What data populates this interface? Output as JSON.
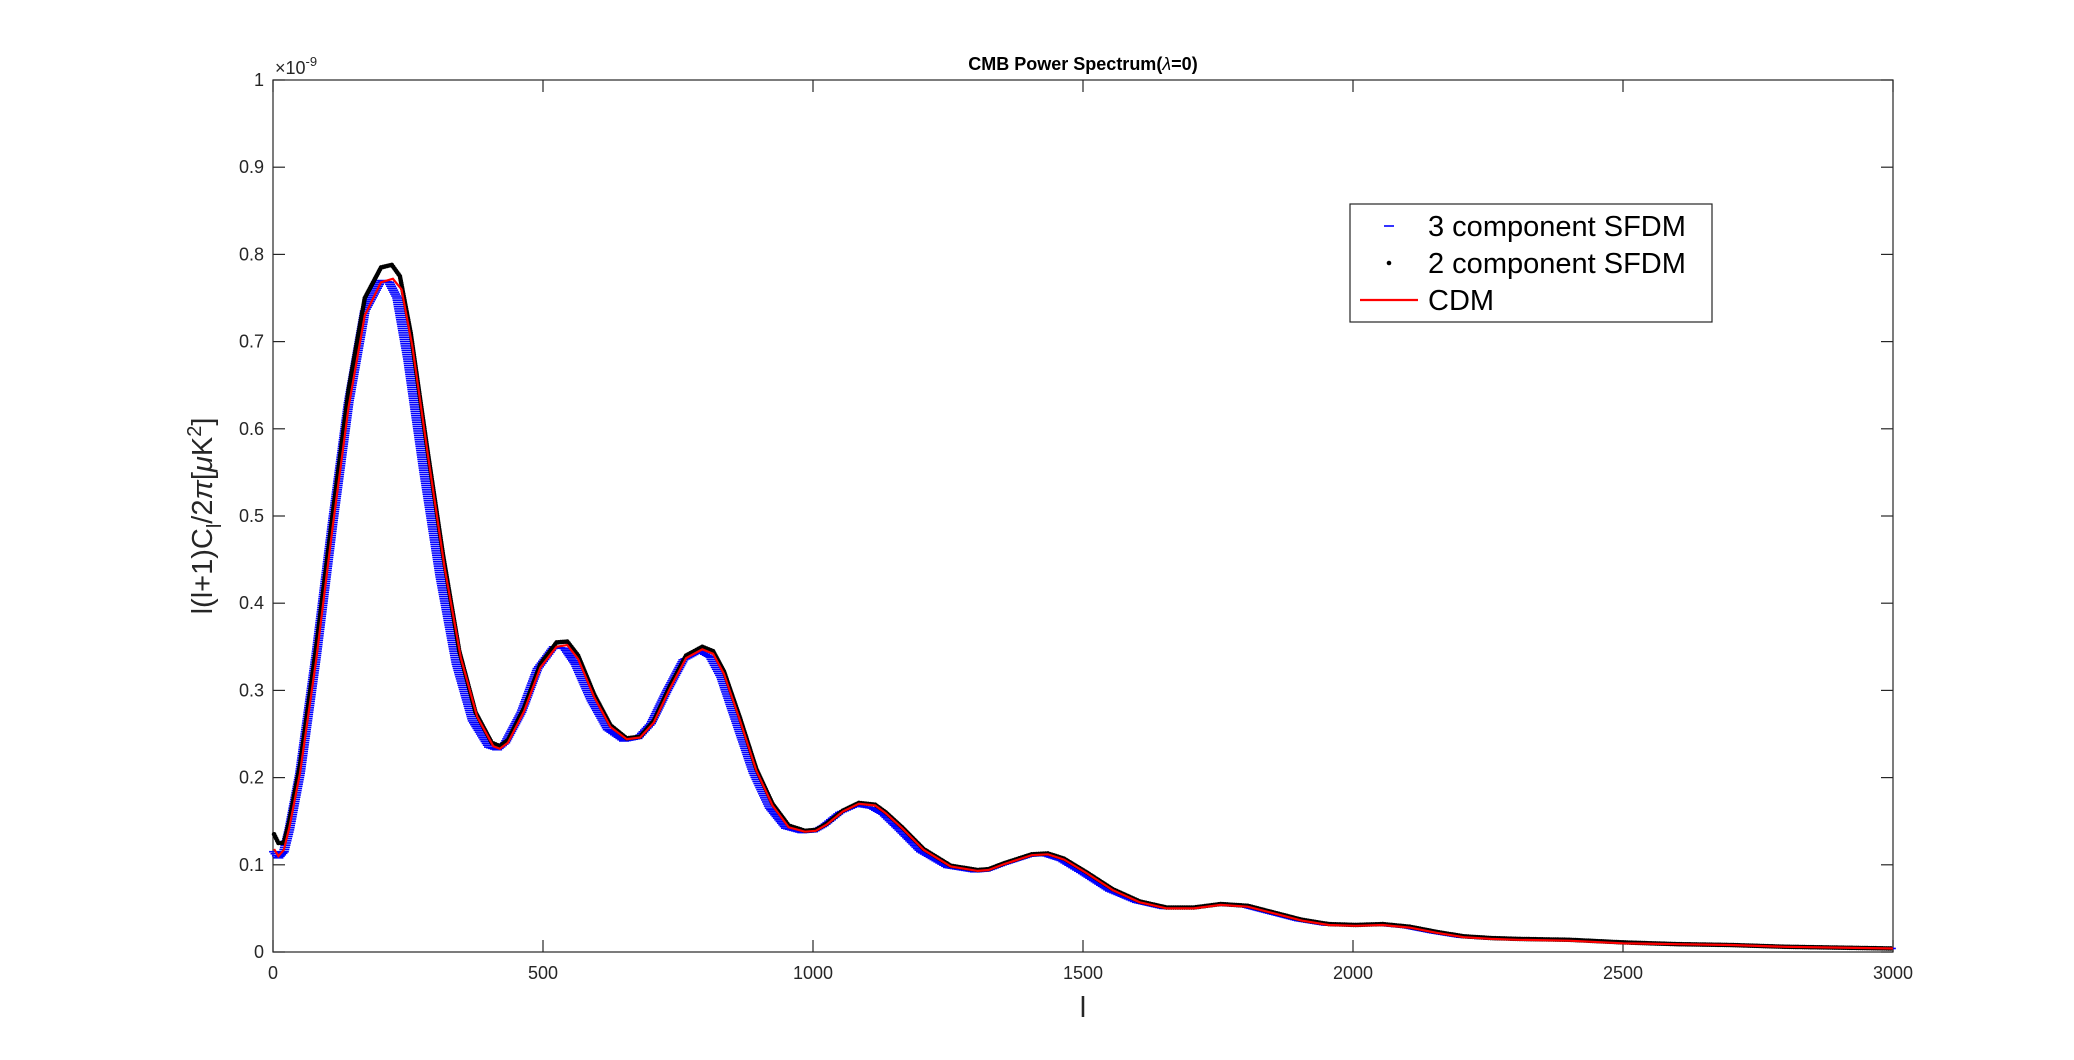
{
  "chart_data": {
    "type": "line",
    "title_prefix": "CMB Power Spectrum(",
    "title_symbol": "λ",
    "title_suffix": "=0)",
    "xlabel": "l",
    "ylabel_parts": [
      "l(l+1)C",
      "l",
      "/2",
      "π",
      "[",
      "μ",
      "K",
      "2",
      "]"
    ],
    "xlim": [
      0,
      3000
    ],
    "ylim": [
      0,
      1
    ],
    "y_exponent_label": "×10",
    "y_exponent": "-9",
    "x_ticks": [
      "0",
      "500",
      "1000",
      "1500",
      "2000",
      "2500",
      "3000"
    ],
    "x_tick_values": [
      0,
      500,
      1000,
      1500,
      2000,
      2500,
      3000
    ],
    "y_ticks": [
      "0",
      "0.1",
      "0.2",
      "0.3",
      "0.4",
      "0.5",
      "0.6",
      "0.7",
      "0.8",
      "0.9",
      "1"
    ],
    "y_tick_values": [
      0,
      0.1,
      0.2,
      0.3,
      0.4,
      0.5,
      0.6,
      0.7,
      0.8,
      0.9,
      1.0
    ],
    "legend_position": "top-right",
    "grid": false,
    "series": [
      {
        "name": "3 component SFDM",
        "color": "#0000ff",
        "marker": "dash",
        "x": [
          2,
          10,
          20,
          30,
          50,
          80,
          110,
          140,
          170,
          200,
          215,
          230,
          250,
          280,
          310,
          340,
          370,
          400,
          415,
          430,
          460,
          490,
          520,
          540,
          560,
          590,
          620,
          650,
          675,
          700,
          730,
          760,
          790,
          810,
          830,
          860,
          890,
          920,
          950,
          980,
          1000,
          1020,
          1050,
          1080,
          1110,
          1130,
          1160,
          1200,
          1250,
          1300,
          1320,
          1350,
          1400,
          1430,
          1460,
          1500,
          1550,
          1600,
          1650,
          1700,
          1750,
          1800,
          1850,
          1900,
          1950,
          2000,
          2050,
          2100,
          2150,
          2200,
          2250,
          2300,
          2400,
          2500,
          2600,
          2700,
          2800,
          2900,
          3000
        ],
        "y": [
          0.115,
          0.108,
          0.115,
          0.14,
          0.205,
          0.34,
          0.49,
          0.63,
          0.735,
          0.77,
          0.768,
          0.75,
          0.68,
          0.55,
          0.43,
          0.33,
          0.265,
          0.235,
          0.232,
          0.24,
          0.275,
          0.325,
          0.35,
          0.348,
          0.33,
          0.288,
          0.255,
          0.242,
          0.245,
          0.262,
          0.3,
          0.335,
          0.345,
          0.338,
          0.315,
          0.26,
          0.205,
          0.165,
          0.142,
          0.137,
          0.138,
          0.145,
          0.16,
          0.168,
          0.165,
          0.158,
          0.14,
          0.115,
          0.097,
          0.092,
          0.093,
          0.1,
          0.11,
          0.111,
          0.105,
          0.09,
          0.07,
          0.057,
          0.05,
          0.05,
          0.054,
          0.052,
          0.044,
          0.036,
          0.031,
          0.03,
          0.031,
          0.028,
          0.022,
          0.017,
          0.015,
          0.014,
          0.013,
          0.01,
          0.009,
          0.008,
          0.006,
          0.005,
          0.004
        ]
      },
      {
        "name": "2 component SFDM",
        "color": "#000000",
        "marker": "dot",
        "x": [
          2,
          10,
          20,
          30,
          50,
          80,
          110,
          140,
          170,
          200,
          220,
          235,
          255,
          285,
          315,
          345,
          375,
          405,
          420,
          435,
          465,
          495,
          525,
          545,
          565,
          595,
          625,
          655,
          680,
          705,
          735,
          765,
          795,
          815,
          835,
          865,
          895,
          925,
          955,
          985,
          1005,
          1025,
          1055,
          1085,
          1115,
          1135,
          1165,
          1205,
          1255,
          1305,
          1325,
          1355,
          1405,
          1435,
          1465,
          1505,
          1555,
          1605,
          1655,
          1705,
          1755,
          1805,
          1855,
          1905,
          1955,
          2005,
          2055,
          2105,
          2155,
          2205,
          2255,
          2305,
          2400,
          2500,
          2600,
          2700,
          2800,
          2900,
          3000
        ],
        "y": [
          0.135,
          0.125,
          0.125,
          0.15,
          0.215,
          0.35,
          0.5,
          0.645,
          0.75,
          0.785,
          0.788,
          0.775,
          0.71,
          0.58,
          0.455,
          0.345,
          0.275,
          0.24,
          0.236,
          0.243,
          0.28,
          0.33,
          0.355,
          0.356,
          0.34,
          0.295,
          0.26,
          0.245,
          0.247,
          0.265,
          0.305,
          0.34,
          0.35,
          0.345,
          0.322,
          0.268,
          0.21,
          0.17,
          0.145,
          0.139,
          0.14,
          0.147,
          0.162,
          0.171,
          0.169,
          0.16,
          0.143,
          0.118,
          0.099,
          0.094,
          0.095,
          0.102,
          0.112,
          0.113,
          0.107,
          0.092,
          0.072,
          0.058,
          0.051,
          0.051,
          0.055,
          0.053,
          0.045,
          0.037,
          0.032,
          0.031,
          0.032,
          0.029,
          0.023,
          0.018,
          0.016,
          0.015,
          0.014,
          0.011,
          0.009,
          0.008,
          0.006,
          0.005,
          0.004
        ]
      },
      {
        "name": "CDM",
        "color": "#ff0000",
        "marker": "line",
        "x": [
          2,
          10,
          20,
          30,
          50,
          80,
          110,
          140,
          170,
          200,
          222,
          238,
          258,
          288,
          318,
          348,
          378,
          408,
          420,
          435,
          465,
          495,
          525,
          545,
          565,
          595,
          625,
          655,
          680,
          705,
          735,
          765,
          795,
          815,
          835,
          865,
          895,
          925,
          955,
          985,
          1005,
          1025,
          1055,
          1085,
          1115,
          1135,
          1165,
          1205,
          1255,
          1305,
          1325,
          1355,
          1405,
          1435,
          1465,
          1505,
          1555,
          1605,
          1655,
          1705,
          1755,
          1805,
          1855,
          1905,
          1955,
          2005,
          2055,
          2105,
          2155,
          2205,
          2255,
          2305,
          2400,
          2500,
          2600,
          2700,
          2800,
          2900,
          3000
        ],
        "y": [
          0.118,
          0.11,
          0.117,
          0.142,
          0.205,
          0.335,
          0.485,
          0.625,
          0.73,
          0.768,
          0.772,
          0.76,
          0.695,
          0.565,
          0.44,
          0.337,
          0.27,
          0.236,
          0.233,
          0.24,
          0.276,
          0.326,
          0.35,
          0.352,
          0.336,
          0.292,
          0.258,
          0.244,
          0.246,
          0.263,
          0.302,
          0.337,
          0.347,
          0.342,
          0.319,
          0.265,
          0.208,
          0.168,
          0.143,
          0.138,
          0.139,
          0.146,
          0.161,
          0.17,
          0.168,
          0.159,
          0.142,
          0.117,
          0.098,
          0.093,
          0.094,
          0.101,
          0.111,
          0.112,
          0.106,
          0.091,
          0.071,
          0.057,
          0.05,
          0.05,
          0.054,
          0.052,
          0.044,
          0.036,
          0.031,
          0.03,
          0.031,
          0.028,
          0.022,
          0.017,
          0.015,
          0.014,
          0.013,
          0.01,
          0.009,
          0.008,
          0.006,
          0.005,
          0.004
        ]
      }
    ]
  }
}
